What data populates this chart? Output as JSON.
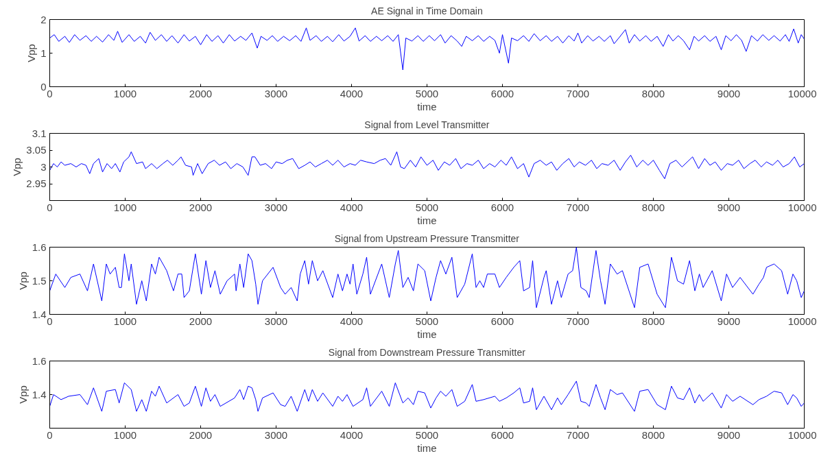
{
  "chart_data": [
    {
      "type": "line",
      "title": "AE Signal in Time Domain",
      "xlabel": "time",
      "ylabel": "Vpp",
      "xlim": [
        0,
        10000
      ],
      "xticks": [
        0,
        1000,
        2000,
        3000,
        4000,
        5000,
        6000,
        7000,
        8000,
        9000,
        10000
      ],
      "ylim": [
        0,
        2
      ],
      "yticks": [
        0,
        1,
        2
      ],
      "grid": false,
      "series": [
        {
          "color": "#0000ff",
          "x": [
            0,
            60,
            120,
            200,
            260,
            330,
            400,
            480,
            550,
            620,
            700,
            780,
            850,
            900,
            960,
            1050,
            1120,
            1200,
            1270,
            1330,
            1400,
            1480,
            1550,
            1620,
            1700,
            1780,
            1850,
            1930,
            2000,
            2080,
            2150,
            2230,
            2300,
            2380,
            2450,
            2530,
            2600,
            2680,
            2750,
            2800,
            2880,
            2950,
            3020,
            3100,
            3180,
            3260,
            3330,
            3400,
            3450,
            3530,
            3600,
            3680,
            3750,
            3830,
            3900,
            3980,
            4050,
            4100,
            4180,
            4250,
            4330,
            4400,
            4480,
            4550,
            4620,
            4680,
            4720,
            4800,
            4880,
            4950,
            5030,
            5100,
            5180,
            5240,
            5320,
            5400,
            5460,
            5520,
            5600,
            5680,
            5750,
            5830,
            5900,
            5960,
            6000,
            6080,
            6120,
            6200,
            6280,
            6350,
            6420,
            6500,
            6580,
            6650,
            6730,
            6800,
            6880,
            6950,
            7000,
            7050,
            7130,
            7200,
            7280,
            7350,
            7430,
            7480,
            7560,
            7630,
            7680,
            7750,
            7820,
            7900,
            7970,
            8050,
            8130,
            8200,
            8260,
            8330,
            8400,
            8480,
            8540,
            8600,
            8680,
            8750,
            8830,
            8900,
            8960,
            9030,
            9100,
            9170,
            9230,
            9300,
            9380,
            9450,
            9530,
            9600,
            9680,
            9750,
            9800,
            9860,
            9920,
            9960,
            10000
          ],
          "values": [
            1.45,
            1.55,
            1.35,
            1.5,
            1.32,
            1.55,
            1.38,
            1.52,
            1.35,
            1.5,
            1.33,
            1.55,
            1.38,
            1.65,
            1.32,
            1.55,
            1.35,
            1.5,
            1.3,
            1.62,
            1.38,
            1.55,
            1.35,
            1.52,
            1.3,
            1.55,
            1.36,
            1.5,
            1.25,
            1.55,
            1.35,
            1.52,
            1.3,
            1.55,
            1.36,
            1.5,
            1.38,
            1.6,
            1.15,
            1.5,
            1.38,
            1.52,
            1.35,
            1.5,
            1.37,
            1.52,
            1.35,
            1.75,
            1.38,
            1.52,
            1.35,
            1.5,
            1.34,
            1.55,
            1.36,
            1.5,
            1.75,
            1.36,
            1.52,
            1.35,
            1.5,
            1.37,
            1.52,
            1.35,
            1.55,
            0.5,
            1.45,
            1.36,
            1.52,
            1.35,
            1.52,
            1.37,
            1.55,
            1.3,
            1.52,
            1.36,
            1.2,
            1.5,
            1.37,
            1.52,
            1.35,
            1.5,
            1.38,
            1.0,
            1.55,
            0.7,
            1.45,
            1.37,
            1.52,
            1.35,
            1.58,
            1.37,
            1.52,
            1.35,
            1.5,
            1.3,
            1.52,
            1.36,
            1.6,
            1.3,
            1.52,
            1.36,
            1.5,
            1.35,
            1.52,
            1.28,
            1.5,
            1.7,
            1.3,
            1.55,
            1.36,
            1.52,
            1.35,
            1.5,
            1.2,
            1.55,
            1.36,
            1.52,
            1.37,
            1.1,
            1.5,
            1.36,
            1.52,
            1.35,
            1.5,
            1.1,
            1.52,
            1.37,
            1.55,
            1.38,
            1.05,
            1.52,
            1.36,
            1.55,
            1.38,
            1.52,
            1.36,
            1.55,
            1.35,
            1.72,
            1.3,
            1.55,
            1.42
          ]
        }
      ]
    },
    {
      "type": "line",
      "title": "Signal from Level Transmitter",
      "xlabel": "time",
      "ylabel": "Vpp",
      "xlim": [
        0,
        10000
      ],
      "xticks": [
        0,
        1000,
        2000,
        3000,
        4000,
        5000,
        6000,
        7000,
        8000,
        9000,
        10000
      ],
      "ylim": [
        2.9,
        3.1
      ],
      "yticks": [
        2.95,
        3,
        3.05,
        3.1
      ],
      "grid": false,
      "series": [
        {
          "color": "#0000ff",
          "x": [
            0,
            50,
            100,
            150,
            200,
            280,
            350,
            420,
            480,
            530,
            580,
            650,
            700,
            760,
            820,
            870,
            930,
            980,
            1050,
            1080,
            1150,
            1230,
            1270,
            1350,
            1420,
            1500,
            1560,
            1630,
            1700,
            1740,
            1800,
            1880,
            1900,
            1960,
            2020,
            2100,
            2180,
            2250,
            2330,
            2400,
            2480,
            2560,
            2630,
            2680,
            2720,
            2790,
            2860,
            2940,
            3000,
            3080,
            3150,
            3220,
            3300,
            3380,
            3450,
            3520,
            3600,
            3680,
            3750,
            3820,
            3900,
            3980,
            4050,
            4120,
            4200,
            4300,
            4380,
            4450,
            4520,
            4600,
            4650,
            4700,
            4780,
            4850,
            4920,
            5000,
            5080,
            5150,
            5230,
            5300,
            5380,
            5450,
            5530,
            5600,
            5680,
            5750,
            5830,
            5900,
            5980,
            6050,
            6120,
            6200,
            6280,
            6350,
            6420,
            6500,
            6580,
            6650,
            6720,
            6800,
            6880,
            6950,
            7020,
            7100,
            7180,
            7250,
            7320,
            7400,
            7480,
            7560,
            7630,
            7700,
            7780,
            7860,
            7930,
            8000,
            8080,
            8150,
            8220,
            8300,
            8380,
            8450,
            8520,
            8600,
            8680,
            8750,
            8820,
            8900,
            8980,
            9050,
            9130,
            9200,
            9280,
            9350,
            9430,
            9500,
            9580,
            9650,
            9720,
            9800,
            9870,
            9940,
            10000
          ],
          "values": [
            2.99,
            3.01,
            3.0,
            3.015,
            3.005,
            3.01,
            3.0,
            3.01,
            3.005,
            2.98,
            3.01,
            3.025,
            2.985,
            3.01,
            2.995,
            3.01,
            2.985,
            3.015,
            3.03,
            3.045,
            3.01,
            3.015,
            2.995,
            3.01,
            2.995,
            3.01,
            3.02,
            3.005,
            3.02,
            3.03,
            3.005,
            3.0,
            2.975,
            3.01,
            2.98,
            3.01,
            3.02,
            3.005,
            3.015,
            2.995,
            3.01,
            3.0,
            2.975,
            3.03,
            3.03,
            3.005,
            3.01,
            2.995,
            3.015,
            3.01,
            3.02,
            3.025,
            2.995,
            3.005,
            3.015,
            3.0,
            3.01,
            3.02,
            3.005,
            3.02,
            3.0,
            3.01,
            3.005,
            3.02,
            3.015,
            3.01,
            3.02,
            3.025,
            3.005,
            3.045,
            3.0,
            2.995,
            3.02,
            3.0,
            3.03,
            3.005,
            3.02,
            2.99,
            3.015,
            3.005,
            3.025,
            2.995,
            3.01,
            3.005,
            3.02,
            2.995,
            3.01,
            3.0,
            3.02,
            3.005,
            3.03,
            2.995,
            3.01,
            2.97,
            3.01,
            3.02,
            3.005,
            3.015,
            2.99,
            3.01,
            3.025,
            3.0,
            3.015,
            3.005,
            3.02,
            2.995,
            3.01,
            3.005,
            3.02,
            2.99,
            3.015,
            3.035,
            3.0,
            3.02,
            3.005,
            3.02,
            2.99,
            2.965,
            3.01,
            3.02,
            3.0,
            3.015,
            3.03,
            2.995,
            3.025,
            3.005,
            3.015,
            2.99,
            3.01,
            3.005,
            3.02,
            2.995,
            3.01,
            3.02,
            3.0,
            3.015,
            3.005,
            3.02,
            3.0,
            3.01,
            3.03,
            3.0,
            3.01
          ]
        }
      ]
    },
    {
      "type": "line",
      "title": "Signal from Upstream Pressure Transmitter",
      "xlabel": "time",
      "ylabel": "Vpp",
      "xlim": [
        0,
        10000
      ],
      "xticks": [
        0,
        1000,
        2000,
        3000,
        4000,
        5000,
        6000,
        7000,
        8000,
        9000,
        10000
      ],
      "ylim": [
        1.4,
        1.6
      ],
      "yticks": [
        1.4,
        1.5,
        1.6
      ],
      "grid": false,
      "series": [
        {
          "color": "#0000ff",
          "x": [
            0,
            80,
            200,
            280,
            400,
            500,
            580,
            690,
            750,
            800,
            870,
            920,
            950,
            990,
            1050,
            1080,
            1150,
            1220,
            1280,
            1350,
            1400,
            1450,
            1550,
            1640,
            1700,
            1750,
            1780,
            1850,
            1930,
            2010,
            2070,
            2130,
            2190,
            2260,
            2350,
            2450,
            2470,
            2520,
            2570,
            2630,
            2680,
            2730,
            2760,
            2820,
            2960,
            3060,
            3120,
            3200,
            3280,
            3320,
            3380,
            3430,
            3480,
            3550,
            3620,
            3750,
            3820,
            3880,
            3940,
            3980,
            4020,
            4070,
            4150,
            4200,
            4250,
            4400,
            4500,
            4580,
            4620,
            4680,
            4750,
            4820,
            4880,
            4970,
            5050,
            5120,
            5180,
            5250,
            5330,
            5400,
            5500,
            5600,
            5650,
            5700,
            5750,
            5800,
            5900,
            5960,
            6050,
            6150,
            6230,
            6280,
            6360,
            6400,
            6450,
            6550,
            6580,
            6650,
            6730,
            6780,
            6870,
            6930,
            6980,
            7040,
            7110,
            7150,
            7240,
            7300,
            7360,
            7430,
            7520,
            7590,
            7750,
            7820,
            7930,
            8050,
            8160,
            8240,
            8320,
            8400,
            8480,
            8550,
            8610,
            8660,
            8780,
            8900,
            8970,
            9050,
            9150,
            9320,
            9400,
            9460,
            9500,
            9600,
            9700,
            9780,
            9850,
            9900,
            9960,
            10000
          ],
          "values": [
            1.47,
            1.52,
            1.48,
            1.51,
            1.52,
            1.47,
            1.55,
            1.44,
            1.55,
            1.52,
            1.54,
            1.48,
            1.48,
            1.58,
            1.5,
            1.55,
            1.43,
            1.5,
            1.44,
            1.55,
            1.52,
            1.57,
            1.53,
            1.47,
            1.52,
            1.52,
            1.45,
            1.47,
            1.58,
            1.46,
            1.56,
            1.48,
            1.53,
            1.46,
            1.5,
            1.52,
            1.47,
            1.55,
            1.48,
            1.58,
            1.56,
            1.49,
            1.43,
            1.5,
            1.54,
            1.48,
            1.46,
            1.48,
            1.44,
            1.52,
            1.56,
            1.49,
            1.56,
            1.5,
            1.53,
            1.45,
            1.52,
            1.47,
            1.52,
            1.49,
            1.55,
            1.46,
            1.52,
            1.57,
            1.46,
            1.55,
            1.45,
            1.55,
            1.59,
            1.48,
            1.51,
            1.47,
            1.55,
            1.53,
            1.44,
            1.51,
            1.56,
            1.52,
            1.57,
            1.45,
            1.49,
            1.58,
            1.48,
            1.5,
            1.48,
            1.52,
            1.52,
            1.48,
            1.51,
            1.54,
            1.56,
            1.47,
            1.48,
            1.56,
            1.42,
            1.51,
            1.53,
            1.43,
            1.5,
            1.45,
            1.52,
            1.53,
            1.6,
            1.48,
            1.47,
            1.45,
            1.59,
            1.5,
            1.43,
            1.55,
            1.52,
            1.53,
            1.42,
            1.54,
            1.55,
            1.46,
            1.42,
            1.57,
            1.5,
            1.49,
            1.56,
            1.47,
            1.52,
            1.48,
            1.53,
            1.44,
            1.52,
            1.48,
            1.51,
            1.46,
            1.49,
            1.51,
            1.54,
            1.55,
            1.53,
            1.46,
            1.52,
            1.5,
            1.45,
            1.47
          ]
        }
      ]
    },
    {
      "type": "line",
      "title": "Signal from Downstream Pressure Transmitter",
      "xlabel": "time",
      "ylabel": "Vpp",
      "xlim": [
        0,
        10000
      ],
      "xticks": [
        0,
        1000,
        2000,
        3000,
        4000,
        5000,
        6000,
        7000,
        8000,
        9000,
        10000
      ],
      "ylim": [
        1.2,
        1.6
      ],
      "yticks": [
        1.4,
        1.6
      ],
      "grid": false,
      "series": [
        {
          "color": "#0000ff",
          "x": [
            0,
            50,
            150,
            250,
            400,
            500,
            580,
            690,
            750,
            870,
            920,
            990,
            1080,
            1150,
            1220,
            1280,
            1350,
            1400,
            1450,
            1550,
            1700,
            1780,
            1850,
            1930,
            2010,
            2070,
            2130,
            2190,
            2260,
            2450,
            2520,
            2570,
            2630,
            2680,
            2730,
            2760,
            2820,
            2960,
            3060,
            3120,
            3200,
            3280,
            3380,
            3430,
            3480,
            3550,
            3620,
            3750,
            3820,
            3880,
            3940,
            4020,
            4150,
            4200,
            4250,
            4400,
            4500,
            4580,
            4680,
            4750,
            4820,
            4880,
            4970,
            5050,
            5120,
            5180,
            5250,
            5330,
            5400,
            5500,
            5600,
            5650,
            5750,
            5900,
            5960,
            6050,
            6150,
            6230,
            6280,
            6360,
            6400,
            6450,
            6550,
            6650,
            6730,
            6780,
            6870,
            6980,
            7040,
            7110,
            7150,
            7240,
            7300,
            7360,
            7430,
            7520,
            7590,
            7750,
            7820,
            7930,
            8050,
            8160,
            8240,
            8320,
            8400,
            8480,
            8550,
            8610,
            8660,
            8780,
            8900,
            8970,
            9050,
            9150,
            9320,
            9400,
            9500,
            9600,
            9700,
            9780,
            9850,
            9900,
            9960,
            10000
          ],
          "values": [
            1.33,
            1.4,
            1.37,
            1.39,
            1.4,
            1.34,
            1.44,
            1.3,
            1.42,
            1.43,
            1.35,
            1.47,
            1.43,
            1.3,
            1.37,
            1.3,
            1.42,
            1.39,
            1.45,
            1.35,
            1.4,
            1.33,
            1.35,
            1.45,
            1.33,
            1.44,
            1.36,
            1.4,
            1.33,
            1.38,
            1.43,
            1.37,
            1.45,
            1.44,
            1.37,
            1.3,
            1.38,
            1.41,
            1.34,
            1.33,
            1.39,
            1.3,
            1.43,
            1.36,
            1.43,
            1.36,
            1.41,
            1.33,
            1.39,
            1.36,
            1.4,
            1.33,
            1.37,
            1.44,
            1.33,
            1.42,
            1.33,
            1.47,
            1.35,
            1.38,
            1.34,
            1.42,
            1.41,
            1.32,
            1.38,
            1.42,
            1.39,
            1.43,
            1.33,
            1.36,
            1.46,
            1.36,
            1.37,
            1.39,
            1.36,
            1.38,
            1.41,
            1.44,
            1.35,
            1.36,
            1.44,
            1.31,
            1.39,
            1.31,
            1.38,
            1.34,
            1.4,
            1.48,
            1.36,
            1.35,
            1.33,
            1.46,
            1.38,
            1.31,
            1.43,
            1.4,
            1.41,
            1.3,
            1.42,
            1.43,
            1.34,
            1.31,
            1.45,
            1.38,
            1.37,
            1.44,
            1.35,
            1.4,
            1.36,
            1.41,
            1.32,
            1.4,
            1.36,
            1.39,
            1.34,
            1.37,
            1.39,
            1.42,
            1.41,
            1.34,
            1.4,
            1.38,
            1.33,
            1.35
          ]
        }
      ]
    }
  ]
}
